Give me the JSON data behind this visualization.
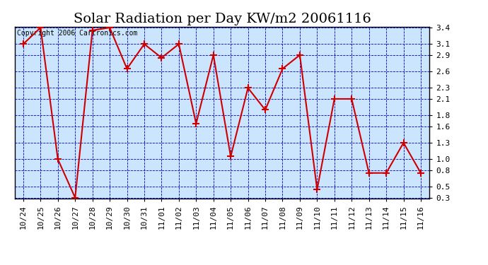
{
  "title": "Solar Radiation per Day KW/m2 20061116",
  "copyright": "Copyright 2006 Cartronics.com",
  "x_labels": [
    "10/24",
    "10/25",
    "10/26",
    "10/27",
    "10/28",
    "10/29",
    "10/30",
    "10/31",
    "11/01",
    "11/02",
    "11/03",
    "11/04",
    "11/05",
    "11/06",
    "11/07",
    "11/08",
    "11/09",
    "11/10",
    "11/11",
    "11/12",
    "11/13",
    "11/14",
    "11/15",
    "11/16"
  ],
  "y_values": [
    3.1,
    3.4,
    1.0,
    0.3,
    3.35,
    3.4,
    2.65,
    3.1,
    2.85,
    3.1,
    1.65,
    2.9,
    1.05,
    2.3,
    1.9,
    2.65,
    2.9,
    0.45,
    2.1,
    2.1,
    0.75,
    0.75,
    1.3,
    0.75
  ],
  "line_color": "#cc0000",
  "marker_color": "#cc0000",
  "bg_color": "#ffffff",
  "plot_bg_color": "#cce5ff",
  "grid_color": "#0000bb",
  "title_color": "#000000",
  "copyright_color": "#000000",
  "ylim_min": 0.3,
  "ylim_max": 3.4,
  "yticks": [
    0.3,
    0.5,
    0.8,
    1.0,
    1.3,
    1.6,
    1.8,
    2.1,
    2.3,
    2.6,
    2.9,
    3.1,
    3.4
  ],
  "title_fontsize": 14,
  "tick_fontsize": 8,
  "copyright_fontsize": 7
}
